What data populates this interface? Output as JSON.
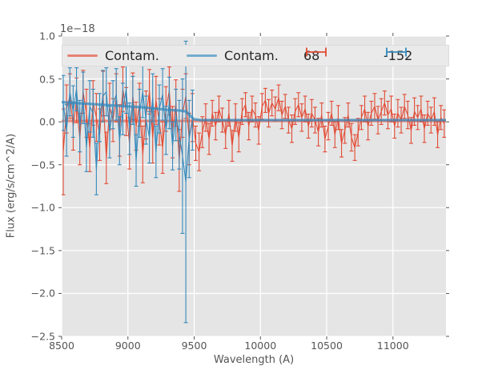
{
  "chart_data": {
    "type": "line+errorbar",
    "title": "",
    "xlabel": "Wavelength (A)",
    "ylabel": "Flux (erg/s/cm^2/A)",
    "offset_label": "1e−18",
    "xlim": [
      8500,
      11400
    ],
    "ylim": [
      -2.5,
      1.0
    ],
    "grid": true,
    "background_color": "#e5e5e5",
    "grid_color": "#ffffff",
    "tick_color": "#555555",
    "xticks": {
      "values": [
        8500,
        9000,
        9500,
        10000,
        10500,
        11000
      ],
      "labels": [
        "8500",
        "9000",
        "9500",
        "10000",
        "10500",
        "11000"
      ]
    },
    "yticks": {
      "values": [
        1.0,
        0.5,
        0.0,
        -0.5,
        -1.0,
        -1.5,
        -2.0,
        -2.5
      ],
      "labels": [
        "1.0",
        "0.5",
        "0.0",
        "−0.5",
        "−1.0",
        "−1.5",
        "−2.0",
        "−2.5"
      ]
    },
    "series": [
      {
        "name": "Contam.",
        "kind": "line",
        "color": "#E24A33",
        "linewidth": 3.2,
        "opacity": 0.6,
        "x": [
          8500,
          11400
        ],
        "y": [
          0.01,
          0.01
        ]
      },
      {
        "name": "68",
        "kind": "errorbar",
        "color": "#E24A33",
        "linewidth": 1.1,
        "opacity": 1.0,
        "x": [
          8512,
          8537,
          8562,
          8587,
          8612,
          8637,
          8662,
          8687,
          8712,
          8737,
          8762,
          8787,
          8812,
          8837,
          8862,
          8887,
          8912,
          8937,
          8962,
          8987,
          9012,
          9037,
          9062,
          9087,
          9112,
          9137,
          9162,
          9187,
          9212,
          9237,
          9262,
          9287,
          9312,
          9337,
          9362,
          9387,
          9412,
          9437,
          9462,
          9487,
          9512,
          9537,
          9562,
          9587,
          9612,
          9637,
          9662,
          9687,
          9712,
          9737,
          9762,
          9787,
          9812,
          9837,
          9862,
          9887,
          9912,
          9937,
          9962,
          9987,
          10012,
          10037,
          10062,
          10087,
          10112,
          10137,
          10162,
          10187,
          10212,
          10237,
          10262,
          10287,
          10312,
          10337,
          10362,
          10387,
          10412,
          10437,
          10462,
          10487,
          10512,
          10537,
          10562,
          10587,
          10612,
          10637,
          10662,
          10687,
          10712,
          10737,
          10762,
          10787,
          10812,
          10837,
          10862,
          10887,
          10912,
          10937,
          10962,
          10987,
          11012,
          11037,
          11062,
          11087,
          11112,
          11137,
          11162,
          11187,
          11212,
          11237,
          11262,
          11287,
          11312,
          11337,
          11362,
          11387
        ],
        "y": [
          -0.35,
          0.15,
          0.3,
          -0.05,
          0.25,
          -0.2,
          0.35,
          0.1,
          -0.3,
          0.22,
          0.05,
          -0.15,
          0.33,
          -0.42,
          0.18,
          0.02,
          0.28,
          -0.1,
          0.38,
          0.12,
          -0.25,
          0.3,
          -0.05,
          0.2,
          -0.38,
          0.08,
          0.35,
          -0.18,
          0.25,
          0.0,
          -0.3,
          0.15,
          0.36,
          -0.12,
          0.22,
          -0.45,
          0.1,
          0.3,
          -0.2,
          0.05,
          -0.25,
          -0.35,
          -0.12,
          0.05,
          -0.2,
          0.1,
          -0.05,
          0.15,
          0.02,
          -0.15,
          0.1,
          -0.28,
          0.05,
          -0.18,
          0.12,
          0.2,
          -0.05,
          0.15,
          0.08,
          -0.1,
          0.18,
          0.25,
          0.1,
          0.22,
          0.15,
          0.28,
          0.08,
          0.18,
          0.02,
          -0.08,
          0.12,
          0.2,
          0.05,
          0.15,
          -0.05,
          0.1,
          0.02,
          -0.12,
          0.08,
          -0.2,
          -0.05,
          0.1,
          -0.15,
          0.05,
          -0.25,
          -0.1,
          0.08,
          -0.18,
          -0.3,
          -0.12,
          0.05,
          0.15,
          -0.05,
          0.1,
          0.18,
          0.02,
          0.12,
          0.22,
          0.08,
          0.15,
          -0.05,
          0.1,
          0.02,
          0.18,
          0.08,
          -0.1,
          0.12,
          0.05,
          0.15,
          -0.08,
          0.1,
          0.02,
          0.12,
          -0.15,
          0.05,
          -0.02
        ],
        "yerr": [
          0.5,
          0.28,
          0.26,
          0.28,
          0.26,
          0.3,
          0.25,
          0.28,
          0.28,
          0.26,
          0.28,
          0.3,
          0.26,
          0.3,
          0.27,
          0.25,
          0.28,
          0.3,
          0.26,
          0.28,
          0.3,
          0.27,
          0.28,
          0.25,
          0.33,
          0.28,
          0.26,
          0.3,
          0.28,
          0.27,
          0.3,
          0.26,
          0.28,
          0.3,
          0.27,
          0.36,
          0.28,
          0.26,
          0.3,
          0.28,
          0.2,
          0.22,
          0.18,
          0.16,
          0.18,
          0.15,
          0.16,
          0.15,
          0.14,
          0.16,
          0.15,
          0.18,
          0.16,
          0.17,
          0.15,
          0.14,
          0.16,
          0.15,
          0.14,
          0.16,
          0.15,
          0.14,
          0.16,
          0.15,
          0.14,
          0.15,
          0.16,
          0.14,
          0.15,
          0.16,
          0.15,
          0.14,
          0.16,
          0.15,
          0.14,
          0.16,
          0.15,
          0.16,
          0.14,
          0.15,
          0.16,
          0.14,
          0.15,
          0.14,
          0.16,
          0.15,
          0.14,
          0.16,
          0.15,
          0.16,
          0.14,
          0.15,
          0.16,
          0.14,
          0.15,
          0.16,
          0.15,
          0.14,
          0.16,
          0.15,
          0.14,
          0.16,
          0.15,
          0.14,
          0.16,
          0.15,
          0.16,
          0.14,
          0.15,
          0.16,
          0.14,
          0.15,
          0.16,
          0.15,
          0.14,
          0.16
        ]
      },
      {
        "name": "-152",
        "kind": "errorbar",
        "color": "#348ABD",
        "linewidth": 1.1,
        "opacity": 1.0,
        "x": [
          8512,
          8537,
          8562,
          8587,
          8612,
          8637,
          8662,
          8687,
          8712,
          8737,
          8762,
          8787,
          8812,
          8837,
          8862,
          8887,
          8912,
          8937,
          8962,
          8987,
          9012,
          9037,
          9062,
          9087,
          9112,
          9137,
          9162,
          9187,
          9212,
          9237,
          9262,
          9287,
          9312,
          9337,
          9362,
          9387,
          9412,
          9437,
          9462,
          9487
        ],
        "y": [
          0.22,
          -0.1,
          0.35,
          0.12,
          0.38,
          -0.05,
          0.28,
          -0.3,
          0.18,
          0.1,
          -0.55,
          0.05,
          0.3,
          0.35,
          -0.12,
          0.2,
          0.32,
          -0.22,
          0.15,
          0.38,
          -0.08,
          0.25,
          -0.45,
          0.1,
          0.35,
          0.02,
          -0.18,
          0.28,
          -0.35,
          0.15,
          0.32,
          -0.1,
          0.22,
          -0.28,
          0.08,
          -0.15,
          -0.4,
          -0.7,
          -0.2,
          0.02
        ],
        "yerr": [
          0.32,
          0.3,
          0.28,
          0.3,
          0.25,
          0.3,
          0.3,
          0.28,
          0.3,
          0.28,
          0.3,
          0.28,
          0.3,
          0.28,
          0.3,
          0.28,
          0.3,
          0.28,
          0.3,
          0.28,
          0.3,
          0.28,
          0.3,
          0.28,
          0.3,
          0.28,
          0.3,
          0.28,
          0.3,
          0.28,
          0.3,
          0.28,
          0.3,
          0.28,
          0.3,
          0.4,
          0.9,
          1.64,
          0.45,
          0.35
        ]
      },
      {
        "name": "Contam.",
        "kind": "line",
        "color": "#348ABD",
        "linewidth": 3.2,
        "opacity": 0.75,
        "x": [
          8500,
          8600,
          8700,
          8800,
          8900,
          9000,
          9100,
          9200,
          9300,
          9400,
          9440,
          9470,
          9500,
          9550,
          11400
        ],
        "y": [
          0.23,
          0.22,
          0.21,
          0.2,
          0.19,
          0.18,
          0.17,
          0.155,
          0.14,
          0.13,
          0.12,
          0.07,
          0.03,
          0.02,
          0.02
        ]
      }
    ],
    "legend": {
      "position": "upper center",
      "items": [
        {
          "label": "Contam.",
          "color": "#E24A33",
          "glyph": "line"
        },
        {
          "label": "Contam.",
          "color": "#348ABD",
          "glyph": "line"
        },
        {
          "label": "68",
          "color": "#E24A33",
          "glyph": "errorbar"
        },
        {
          "label": "-152",
          "color": "#348ABD",
          "glyph": "errorbar"
        }
      ]
    }
  }
}
